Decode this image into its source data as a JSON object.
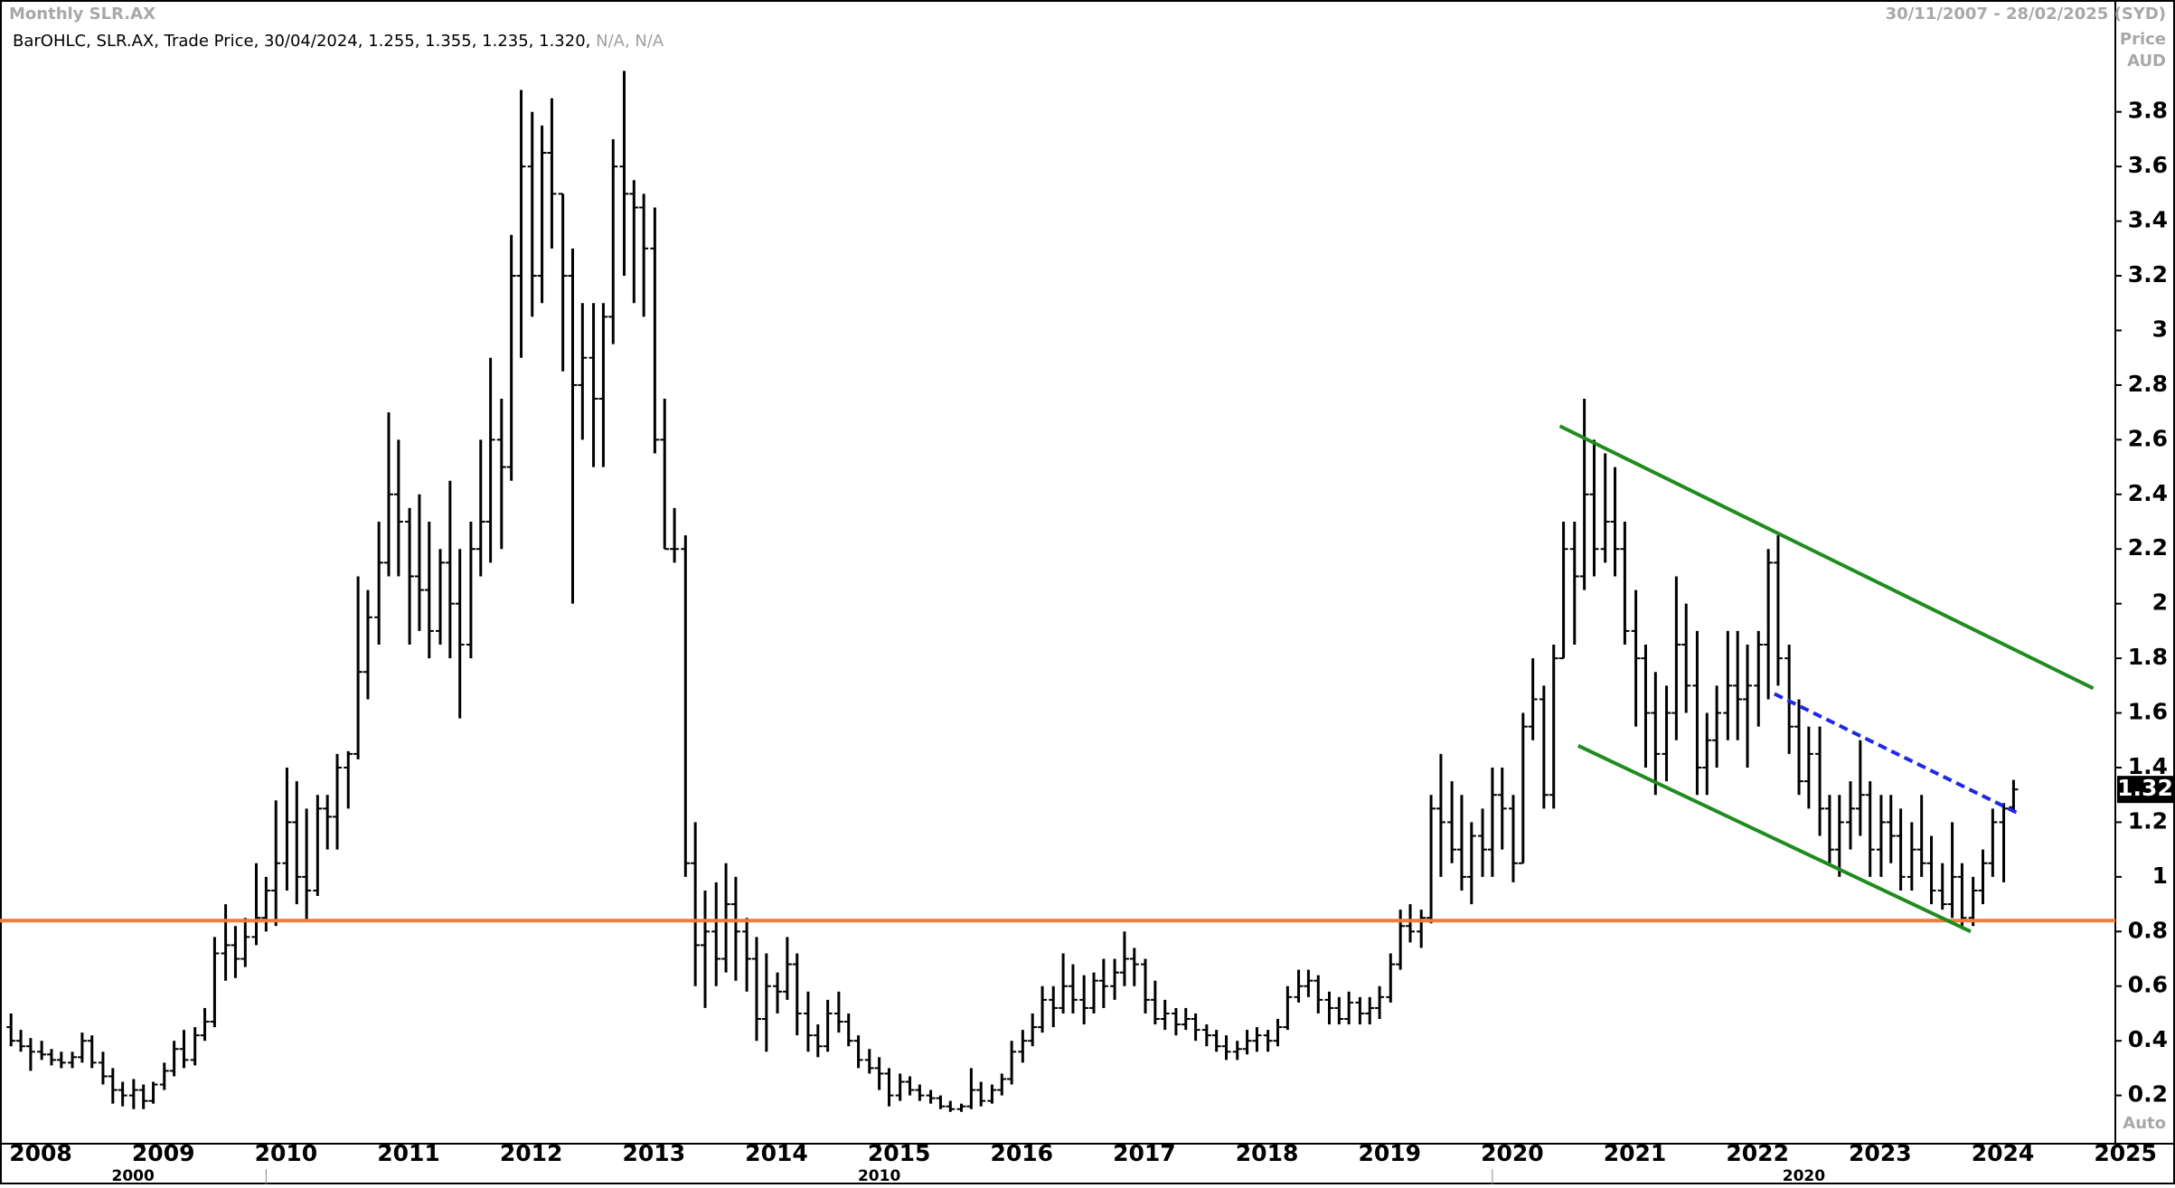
{
  "chart_data": {
    "type": "ohlc",
    "title": "Monthly SLR.AX",
    "date_range": "30/11/2007 - 28/02/2025 (SYD)",
    "legend_text": "BarOHLC, SLR.AX, Trade Price, 30/04/2024, 1.255, 1.355, 1.235, 1.320,",
    "legend_na": "N/A, N/A",
    "y_axis_label": "Price",
    "y_axis_unit": "AUD",
    "scale_mode": "Auto",
    "color": "#000000",
    "xlim": [
      2007.83,
      2025.08
    ],
    "ylim": [
      0.03,
      4.13
    ],
    "xticks": [
      2008,
      2009,
      2010,
      2011,
      2012,
      2013,
      2014,
      2015,
      2016,
      2017,
      2018,
      2019,
      2020,
      2021,
      2022,
      2023,
      2024,
      2025
    ],
    "yticks": [
      0.2,
      0.4,
      0.6,
      0.8,
      1,
      1.2,
      1.4,
      1.6,
      1.8,
      2,
      2.2,
      2.4,
      2.6,
      2.8,
      3,
      3.2,
      3.4,
      3.6,
      3.8
    ],
    "decades": [
      {
        "value": 2010,
        "label": "2000"
      },
      {
        "value": 2020,
        "label": "2010"
      },
      {
        "value": 2025.08,
        "label": "2020"
      }
    ],
    "x": [
      2007.92,
      2008.0,
      2008.08,
      2008.17,
      2008.25,
      2008.33,
      2008.42,
      2008.5,
      2008.58,
      2008.67,
      2008.75,
      2008.83,
      2008.92,
      2009.0,
      2009.08,
      2009.17,
      2009.25,
      2009.33,
      2009.42,
      2009.5,
      2009.58,
      2009.67,
      2009.75,
      2009.83,
      2009.92,
      2010.0,
      2010.08,
      2010.17,
      2010.25,
      2010.33,
      2010.42,
      2010.5,
      2010.58,
      2010.67,
      2010.75,
      2010.83,
      2010.92,
      2011.0,
      2011.08,
      2011.17,
      2011.25,
      2011.33,
      2011.42,
      2011.5,
      2011.58,
      2011.67,
      2011.75,
      2011.83,
      2011.92,
      2012.0,
      2012.08,
      2012.17,
      2012.25,
      2012.33,
      2012.42,
      2012.5,
      2012.58,
      2012.67,
      2012.75,
      2012.83,
      2012.92,
      2013.0,
      2013.08,
      2013.17,
      2013.25,
      2013.33,
      2013.42,
      2013.5,
      2013.58,
      2013.67,
      2013.75,
      2013.83,
      2013.92,
      2014.0,
      2014.08,
      2014.17,
      2014.25,
      2014.33,
      2014.42,
      2014.5,
      2014.58,
      2014.67,
      2014.75,
      2014.83,
      2014.92,
      2015.0,
      2015.08,
      2015.17,
      2015.25,
      2015.33,
      2015.42,
      2015.5,
      2015.58,
      2015.67,
      2015.75,
      2015.83,
      2015.92,
      2016.0,
      2016.08,
      2016.17,
      2016.25,
      2016.33,
      2016.42,
      2016.5,
      2016.58,
      2016.67,
      2016.75,
      2016.83,
      2016.92,
      2017.0,
      2017.08,
      2017.17,
      2017.25,
      2017.33,
      2017.42,
      2017.5,
      2017.58,
      2017.67,
      2017.75,
      2017.83,
      2017.92,
      2018.0,
      2018.08,
      2018.17,
      2018.25,
      2018.33,
      2018.42,
      2018.5,
      2018.58,
      2018.67,
      2018.75,
      2018.83,
      2018.92,
      2019.0,
      2019.08,
      2019.17,
      2019.25,
      2019.33,
      2019.42,
      2019.5,
      2019.58,
      2019.67,
      2019.75,
      2019.83,
      2019.92,
      2020.0,
      2020.08,
      2020.17,
      2020.25,
      2020.33,
      2020.42,
      2020.5,
      2020.58,
      2020.67,
      2020.75,
      2020.83,
      2020.92,
      2021.0,
      2021.08,
      2021.17,
      2021.25,
      2021.33,
      2021.42,
      2021.5,
      2021.58,
      2021.67,
      2021.75,
      2021.83,
      2021.92,
      2022.0,
      2022.08,
      2022.17,
      2022.25,
      2022.33,
      2022.42,
      2022.5,
      2022.58,
      2022.67,
      2022.75,
      2022.83,
      2022.92,
      2023.0,
      2023.08,
      2023.17,
      2023.25,
      2023.33,
      2023.42,
      2023.5,
      2023.58,
      2023.67,
      2023.75,
      2023.83,
      2023.92,
      2024.0,
      2024.08,
      2024.17,
      2024.25
    ],
    "ohlc": [
      [
        0.45,
        0.5,
        0.38,
        0.4
      ],
      [
        0.4,
        0.44,
        0.36,
        0.38
      ],
      [
        0.38,
        0.41,
        0.29,
        0.36
      ],
      [
        0.36,
        0.4,
        0.33,
        0.35
      ],
      [
        0.35,
        0.37,
        0.31,
        0.33
      ],
      [
        0.33,
        0.36,
        0.3,
        0.32
      ],
      [
        0.32,
        0.36,
        0.3,
        0.34
      ],
      [
        0.34,
        0.43,
        0.32,
        0.4
      ],
      [
        0.4,
        0.42,
        0.3,
        0.32
      ],
      [
        0.32,
        0.36,
        0.24,
        0.27
      ],
      [
        0.27,
        0.3,
        0.17,
        0.22
      ],
      [
        0.22,
        0.25,
        0.16,
        0.2
      ],
      [
        0.2,
        0.26,
        0.15,
        0.22
      ],
      [
        0.22,
        0.24,
        0.15,
        0.18
      ],
      [
        0.18,
        0.25,
        0.17,
        0.24
      ],
      [
        0.24,
        0.32,
        0.22,
        0.29
      ],
      [
        0.29,
        0.4,
        0.27,
        0.37
      ],
      [
        0.37,
        0.44,
        0.3,
        0.33
      ],
      [
        0.33,
        0.45,
        0.31,
        0.42
      ],
      [
        0.42,
        0.52,
        0.4,
        0.47
      ],
      [
        0.47,
        0.78,
        0.45,
        0.72
      ],
      [
        0.72,
        0.9,
        0.62,
        0.75
      ],
      [
        0.75,
        0.82,
        0.63,
        0.7
      ],
      [
        0.7,
        0.85,
        0.67,
        0.78
      ],
      [
        0.78,
        1.05,
        0.75,
        0.85
      ],
      [
        0.85,
        1.0,
        0.8,
        0.95
      ],
      [
        0.95,
        1.28,
        0.82,
        1.05
      ],
      [
        1.05,
        1.4,
        0.95,
        1.2
      ],
      [
        1.2,
        1.35,
        0.9,
        1.0
      ],
      [
        1.0,
        1.25,
        0.84,
        0.95
      ],
      [
        0.95,
        1.3,
        0.93,
        1.25
      ],
      [
        1.25,
        1.3,
        1.1,
        1.22
      ],
      [
        1.22,
        1.45,
        1.1,
        1.4
      ],
      [
        1.4,
        1.46,
        1.25,
        1.45
      ],
      [
        1.45,
        2.1,
        1.43,
        1.75
      ],
      [
        1.75,
        2.05,
        1.65,
        1.95
      ],
      [
        1.95,
        2.3,
        1.85,
        2.15
      ],
      [
        2.15,
        2.7,
        2.1,
        2.4
      ],
      [
        2.4,
        2.6,
        2.1,
        2.3
      ],
      [
        2.3,
        2.35,
        1.85,
        2.1
      ],
      [
        2.1,
        2.4,
        1.9,
        2.05
      ],
      [
        2.05,
        2.3,
        1.8,
        1.9
      ],
      [
        1.9,
        2.2,
        1.85,
        2.15
      ],
      [
        2.15,
        2.45,
        1.8,
        2.0
      ],
      [
        2.0,
        2.2,
        1.58,
        1.85
      ],
      [
        1.85,
        2.3,
        1.8,
        2.2
      ],
      [
        2.2,
        2.6,
        2.1,
        2.3
      ],
      [
        2.3,
        2.9,
        2.15,
        2.6
      ],
      [
        2.6,
        2.75,
        2.2,
        2.5
      ],
      [
        2.5,
        3.35,
        2.45,
        3.2
      ],
      [
        3.2,
        3.88,
        2.9,
        3.6
      ],
      [
        3.6,
        3.8,
        3.05,
        3.2
      ],
      [
        3.2,
        3.75,
        3.1,
        3.65
      ],
      [
        3.65,
        3.85,
        3.3,
        3.5
      ],
      [
        3.5,
        3.5,
        2.85,
        3.2
      ],
      [
        3.2,
        3.3,
        2.0,
        2.8
      ],
      [
        2.8,
        3.1,
        2.6,
        2.9
      ],
      [
        2.9,
        3.1,
        2.5,
        2.75
      ],
      [
        2.75,
        3.1,
        2.5,
        3.05
      ],
      [
        3.05,
        3.7,
        2.95,
        3.6
      ],
      [
        3.6,
        3.95,
        3.2,
        3.5
      ],
      [
        3.5,
        3.55,
        3.1,
        3.45
      ],
      [
        3.45,
        3.5,
        3.05,
        3.3
      ],
      [
        3.3,
        3.45,
        2.55,
        2.6
      ],
      [
        2.6,
        2.75,
        2.2,
        2.2
      ],
      [
        2.2,
        2.35,
        2.15,
        2.2
      ],
      [
        2.2,
        2.25,
        1.0,
        1.05
      ],
      [
        1.05,
        1.2,
        0.6,
        0.75
      ],
      [
        0.75,
        0.95,
        0.52,
        0.8
      ],
      [
        0.8,
        0.98,
        0.6,
        0.7
      ],
      [
        0.7,
        1.05,
        0.65,
        0.9
      ],
      [
        0.9,
        1.0,
        0.62,
        0.8
      ],
      [
        0.8,
        0.85,
        0.58,
        0.7
      ],
      [
        0.7,
        0.78,
        0.4,
        0.48
      ],
      [
        0.48,
        0.72,
        0.36,
        0.6
      ],
      [
        0.6,
        0.65,
        0.5,
        0.58
      ],
      [
        0.58,
        0.78,
        0.55,
        0.68
      ],
      [
        0.68,
        0.72,
        0.42,
        0.5
      ],
      [
        0.5,
        0.58,
        0.36,
        0.42
      ],
      [
        0.42,
        0.46,
        0.34,
        0.38
      ],
      [
        0.38,
        0.55,
        0.36,
        0.5
      ],
      [
        0.5,
        0.58,
        0.43,
        0.47
      ],
      [
        0.47,
        0.5,
        0.38,
        0.4
      ],
      [
        0.4,
        0.42,
        0.3,
        0.33
      ],
      [
        0.33,
        0.37,
        0.28,
        0.3
      ],
      [
        0.3,
        0.34,
        0.22,
        0.28
      ],
      [
        0.28,
        0.3,
        0.16,
        0.2
      ],
      [
        0.2,
        0.28,
        0.18,
        0.25
      ],
      [
        0.25,
        0.27,
        0.2,
        0.22
      ],
      [
        0.22,
        0.24,
        0.18,
        0.2
      ],
      [
        0.2,
        0.22,
        0.17,
        0.19
      ],
      [
        0.19,
        0.2,
        0.15,
        0.16
      ],
      [
        0.16,
        0.18,
        0.14,
        0.15
      ],
      [
        0.15,
        0.17,
        0.14,
        0.16
      ],
      [
        0.16,
        0.3,
        0.15,
        0.22
      ],
      [
        0.22,
        0.25,
        0.16,
        0.18
      ],
      [
        0.18,
        0.24,
        0.17,
        0.22
      ],
      [
        0.22,
        0.28,
        0.2,
        0.26
      ],
      [
        0.26,
        0.4,
        0.24,
        0.36
      ],
      [
        0.36,
        0.44,
        0.32,
        0.4
      ],
      [
        0.4,
        0.5,
        0.38,
        0.45
      ],
      [
        0.45,
        0.6,
        0.43,
        0.55
      ],
      [
        0.55,
        0.6,
        0.45,
        0.52
      ],
      [
        0.52,
        0.72,
        0.5,
        0.6
      ],
      [
        0.6,
        0.68,
        0.5,
        0.55
      ],
      [
        0.55,
        0.64,
        0.46,
        0.52
      ],
      [
        0.52,
        0.65,
        0.5,
        0.62
      ],
      [
        0.62,
        0.7,
        0.52,
        0.6
      ],
      [
        0.6,
        0.7,
        0.55,
        0.65
      ],
      [
        0.65,
        0.8,
        0.6,
        0.7
      ],
      [
        0.7,
        0.74,
        0.6,
        0.68
      ],
      [
        0.68,
        0.7,
        0.5,
        0.55
      ],
      [
        0.55,
        0.62,
        0.46,
        0.48
      ],
      [
        0.48,
        0.55,
        0.44,
        0.5
      ],
      [
        0.5,
        0.52,
        0.42,
        0.46
      ],
      [
        0.46,
        0.52,
        0.44,
        0.48
      ],
      [
        0.48,
        0.5,
        0.4,
        0.44
      ],
      [
        0.44,
        0.46,
        0.38,
        0.42
      ],
      [
        0.42,
        0.44,
        0.36,
        0.38
      ],
      [
        0.38,
        0.42,
        0.33,
        0.36
      ],
      [
        0.36,
        0.4,
        0.33,
        0.37
      ],
      [
        0.37,
        0.44,
        0.35,
        0.4
      ],
      [
        0.4,
        0.45,
        0.36,
        0.42
      ],
      [
        0.42,
        0.44,
        0.36,
        0.4
      ],
      [
        0.4,
        0.48,
        0.38,
        0.45
      ],
      [
        0.45,
        0.6,
        0.44,
        0.56
      ],
      [
        0.56,
        0.66,
        0.54,
        0.6
      ],
      [
        0.6,
        0.66,
        0.56,
        0.62
      ],
      [
        0.62,
        0.64,
        0.5,
        0.55
      ],
      [
        0.55,
        0.58,
        0.46,
        0.52
      ],
      [
        0.52,
        0.56,
        0.46,
        0.48
      ],
      [
        0.48,
        0.58,
        0.46,
        0.54
      ],
      [
        0.54,
        0.56,
        0.46,
        0.5
      ],
      [
        0.5,
        0.56,
        0.46,
        0.52
      ],
      [
        0.52,
        0.6,
        0.48,
        0.56
      ],
      [
        0.56,
        0.72,
        0.54,
        0.68
      ],
      [
        0.68,
        0.88,
        0.66,
        0.82
      ],
      [
        0.82,
        0.9,
        0.76,
        0.8
      ],
      [
        0.8,
        0.88,
        0.74,
        0.85
      ],
      [
        0.85,
        1.3,
        0.83,
        1.25
      ],
      [
        1.25,
        1.45,
        1.0,
        1.2
      ],
      [
        1.2,
        1.35,
        1.05,
        1.1
      ],
      [
        1.1,
        1.3,
        0.95,
        1.0
      ],
      [
        1.0,
        1.2,
        0.9,
        1.15
      ],
      [
        1.15,
        1.25,
        1.0,
        1.1
      ],
      [
        1.1,
        1.4,
        1.0,
        1.3
      ],
      [
        1.3,
        1.4,
        1.1,
        1.25
      ],
      [
        1.25,
        1.3,
        0.98,
        1.05
      ],
      [
        1.05,
        1.6,
        1.05,
        1.55
      ],
      [
        1.55,
        1.8,
        1.5,
        1.65
      ],
      [
        1.65,
        1.7,
        1.25,
        1.3
      ],
      [
        1.3,
        1.85,
        1.25,
        1.8
      ],
      [
        1.8,
        2.3,
        1.8,
        2.2
      ],
      [
        2.2,
        2.3,
        1.85,
        2.1
      ],
      [
        2.1,
        2.75,
        2.05,
        2.4
      ],
      [
        2.4,
        2.6,
        2.1,
        2.2
      ],
      [
        2.2,
        2.55,
        2.15,
        2.3
      ],
      [
        2.3,
        2.5,
        2.1,
        2.2
      ],
      [
        2.2,
        2.3,
        1.85,
        1.9
      ],
      [
        1.9,
        2.05,
        1.55,
        1.8
      ],
      [
        1.8,
        1.85,
        1.4,
        1.6
      ],
      [
        1.6,
        1.75,
        1.3,
        1.45
      ],
      [
        1.45,
        1.7,
        1.35,
        1.6
      ],
      [
        1.6,
        2.1,
        1.5,
        1.85
      ],
      [
        1.85,
        2.0,
        1.6,
        1.7
      ],
      [
        1.7,
        1.9,
        1.3,
        1.4
      ],
      [
        1.4,
        1.6,
        1.3,
        1.5
      ],
      [
        1.5,
        1.7,
        1.4,
        1.6
      ],
      [
        1.6,
        1.9,
        1.5,
        1.7
      ],
      [
        1.7,
        1.9,
        1.5,
        1.65
      ],
      [
        1.65,
        1.85,
        1.4,
        1.7
      ],
      [
        1.7,
        1.9,
        1.55,
        1.85
      ],
      [
        1.85,
        2.2,
        1.65,
        2.15
      ],
      [
        2.15,
        2.25,
        1.7,
        1.8
      ],
      [
        1.8,
        1.85,
        1.45,
        1.55
      ],
      [
        1.55,
        1.65,
        1.3,
        1.35
      ],
      [
        1.35,
        1.55,
        1.25,
        1.45
      ],
      [
        1.45,
        1.55,
        1.15,
        1.25
      ],
      [
        1.25,
        1.3,
        1.05,
        1.1
      ],
      [
        1.1,
        1.3,
        1.0,
        1.2
      ],
      [
        1.2,
        1.35,
        1.1,
        1.25
      ],
      [
        1.25,
        1.5,
        1.15,
        1.3
      ],
      [
        1.3,
        1.35,
        1.0,
        1.1
      ],
      [
        1.1,
        1.3,
        1.0,
        1.2
      ],
      [
        1.2,
        1.3,
        1.05,
        1.15
      ],
      [
        1.15,
        1.25,
        0.95,
        1.0
      ],
      [
        1.0,
        1.2,
        0.95,
        1.1
      ],
      [
        1.1,
        1.3,
        1.0,
        1.05
      ],
      [
        1.05,
        1.15,
        0.9,
        0.95
      ],
      [
        0.95,
        1.05,
        0.88,
        0.9
      ],
      [
        0.9,
        1.2,
        0.85,
        1.0
      ],
      [
        1.0,
        1.05,
        0.82,
        0.85
      ],
      [
        0.85,
        1.0,
        0.82,
        0.95
      ],
      [
        0.95,
        1.1,
        0.9,
        1.05
      ],
      [
        1.05,
        1.25,
        1.0,
        1.2
      ],
      [
        1.2,
        1.27,
        0.98,
        1.25
      ],
      [
        1.255,
        1.355,
        1.235,
        1.32
      ]
    ],
    "trendlines": [
      {
        "color": "#f07c3c",
        "dashed": false,
        "x": [
          2007.83,
          2025.08
        ],
        "y": [
          0.84,
          0.84
        ]
      },
      {
        "color": "#1f8c1f",
        "dashed": false,
        "x": [
          2020.55,
          2024.9
        ],
        "y": [
          2.65,
          1.69
        ]
      },
      {
        "color": "#1f8c1f",
        "dashed": false,
        "x": [
          2020.7,
          2023.9
        ],
        "y": [
          1.48,
          0.8
        ]
      },
      {
        "color": "#1e28e6",
        "dashed": true,
        "x": [
          2022.3,
          2024.3
        ],
        "y": [
          1.67,
          1.23
        ]
      }
    ]
  }
}
